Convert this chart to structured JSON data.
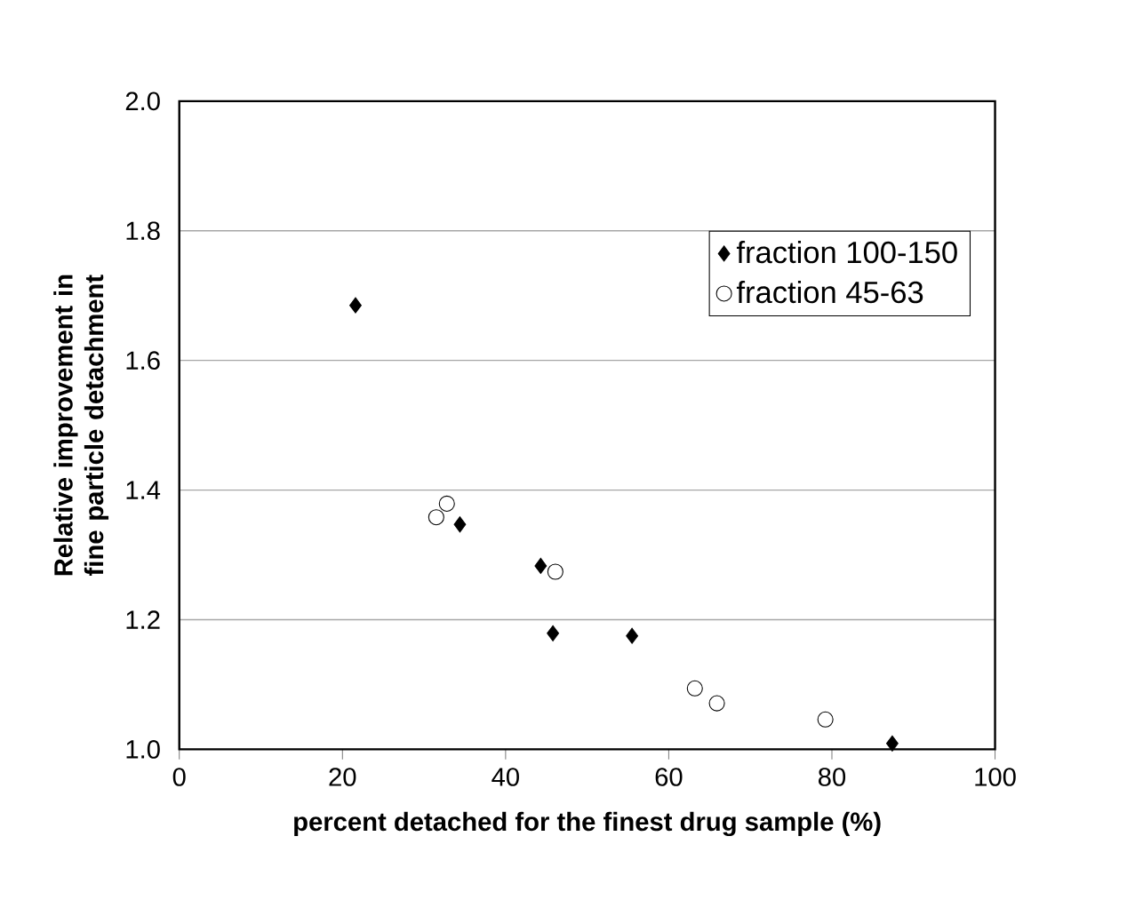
{
  "chart_data": {
    "type": "scatter",
    "xlabel": "percent detached for the finest drug sample (%)",
    "ylabel": "Relative improvement in fine particle detachment",
    "xlim": [
      0,
      100
    ],
    "ylim": [
      1.0,
      2.0
    ],
    "xticks": [
      0,
      20,
      40,
      60,
      80,
      100
    ],
    "yticks": [
      {
        "value": 1.0,
        "label": "1.0"
      },
      {
        "value": 1.2,
        "label": "1.2"
      },
      {
        "value": 1.4,
        "label": "1.4"
      },
      {
        "value": 1.6,
        "label": "1.6"
      },
      {
        "value": 1.8,
        "label": "1.8"
      },
      {
        "value": 2.0,
        "label": "2.0"
      }
    ],
    "grid": "y",
    "legend": "top right",
    "series": [
      {
        "name": "fraction 100-150",
        "color": "#000000",
        "marker": "diamond",
        "x": [
          21.6,
          34.4,
          44.3,
          45.8,
          55.5,
          87.4
        ],
        "values": [
          1.685,
          1.347,
          1.283,
          1.179,
          1.175,
          1.009
        ]
      },
      {
        "name": "fraction 45-63",
        "color": "#000000",
        "marker": "circle",
        "x": [
          31.5,
          32.8,
          46.1,
          63.2,
          65.9,
          79.2
        ],
        "values": [
          1.358,
          1.379,
          1.274,
          1.094,
          1.071,
          1.046
        ]
      }
    ]
  }
}
